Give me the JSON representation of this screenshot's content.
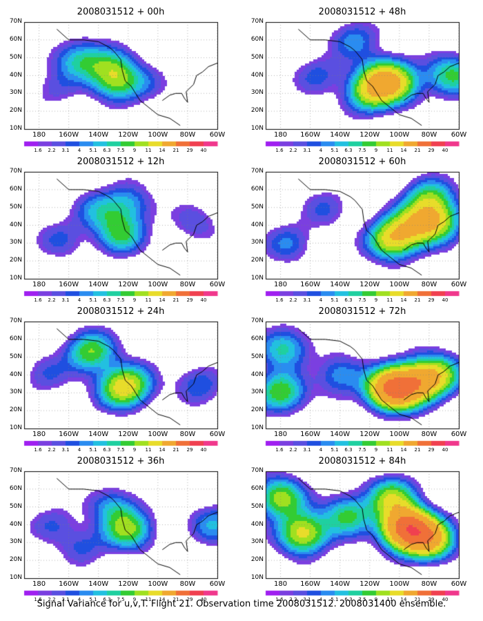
{
  "figure": {
    "caption": "Signal Variance for u,v,T. Flight 21. Observation time 2008031512. 2008031400 ensemble."
  },
  "axes": {
    "lon_labels": [
      "180",
      "160W",
      "140W",
      "120W",
      "100W",
      "80W",
      "60W"
    ],
    "lat_labels": [
      "10N",
      "20N",
      "30N",
      "40N",
      "50N",
      "60N",
      "70N"
    ],
    "lon_range_deg": [
      -190,
      -60
    ],
    "lat_range_deg": [
      10,
      70
    ],
    "grid": "dotted"
  },
  "colorbar": {
    "levels": [
      "1.6",
      "2.2",
      "3.1",
      "4",
      "5.1",
      "6.3",
      "7.5",
      "9",
      "11",
      "14",
      "21",
      "29",
      "40"
    ],
    "colors": [
      "#a020f0",
      "#7b3fe0",
      "#5a4fe0",
      "#1f4fe0",
      "#2a8cf0",
      "#22c0e0",
      "#1fd0a0",
      "#33cc33",
      "#a0e020",
      "#e8dc2a",
      "#f0a830",
      "#f07038",
      "#f04050",
      "#f0388c"
    ]
  },
  "panels": [
    {
      "title": "2008031512 + 00h",
      "lead_hours": 0,
      "colorbar_shown": true,
      "variance_blobs": [
        {
          "lon": -158,
          "lat": 50,
          "value": 2.5
        },
        {
          "lon": -150,
          "lat": 48,
          "value": 4.2
        },
        {
          "lon": -133,
          "lat": 45,
          "value": 4.8
        },
        {
          "lon": -127,
          "lat": 37,
          "value": 8
        },
        {
          "lon": -170,
          "lat": 32,
          "value": 2.3
        },
        {
          "lon": -108,
          "lat": 35,
          "value": 2.1
        }
      ]
    },
    {
      "title": "2008031512 + 48h",
      "lead_hours": 48,
      "colorbar_shown": true,
      "variance_blobs": [
        {
          "lon": -110,
          "lat": 38,
          "value": 11
        },
        {
          "lon": -120,
          "lat": 30,
          "value": 9
        },
        {
          "lon": -100,
          "lat": 35,
          "value": 6
        },
        {
          "lon": -65,
          "lat": 40,
          "value": 8
        },
        {
          "lon": -155,
          "lat": 40,
          "value": 3.5
        },
        {
          "lon": -130,
          "lat": 60,
          "value": 4.5
        }
      ]
    },
    {
      "title": "2008031512 + 12h",
      "lead_hours": 12,
      "colorbar_shown": true,
      "variance_blobs": [
        {
          "lon": -140,
          "lat": 48,
          "value": 4.5
        },
        {
          "lon": -125,
          "lat": 35,
          "value": 7.5
        },
        {
          "lon": -165,
          "lat": 32,
          "value": 3.2
        },
        {
          "lon": -75,
          "lat": 42,
          "value": 3
        },
        {
          "lon": -120,
          "lat": 52,
          "value": 5
        }
      ]
    },
    {
      "title": "2008031512 + 60h",
      "lead_hours": 60,
      "colorbar_shown": true,
      "variance_blobs": [
        {
          "lon": -105,
          "lat": 32,
          "value": 12
        },
        {
          "lon": -90,
          "lat": 40,
          "value": 9
        },
        {
          "lon": -75,
          "lat": 42,
          "value": 10
        },
        {
          "lon": -80,
          "lat": 55,
          "value": 8
        },
        {
          "lon": -175,
          "lat": 30,
          "value": 4
        },
        {
          "lon": -150,
          "lat": 50,
          "value": 3
        }
      ]
    },
    {
      "title": "2008031512 + 24h",
      "lead_hours": 24,
      "colorbar_shown": true,
      "variance_blobs": [
        {
          "lon": -145,
          "lat": 53,
          "value": 9
        },
        {
          "lon": -125,
          "lat": 32,
          "value": 8
        },
        {
          "lon": -118,
          "lat": 35,
          "value": 6
        },
        {
          "lon": -72,
          "lat": 35,
          "value": 4
        },
        {
          "lon": -175,
          "lat": 40,
          "value": 3
        }
      ]
    },
    {
      "title": "2008031512 + 72h",
      "lead_hours": 72,
      "colorbar_shown": true,
      "variance_blobs": [
        {
          "lon": -105,
          "lat": 32,
          "value": 21
        },
        {
          "lon": -90,
          "lat": 35,
          "value": 12
        },
        {
          "lon": -75,
          "lat": 40,
          "value": 11
        },
        {
          "lon": -180,
          "lat": 30,
          "value": 9
        },
        {
          "lon": -178,
          "lat": 55,
          "value": 7
        },
        {
          "lon": -140,
          "lat": 40,
          "value": 5
        }
      ]
    },
    {
      "title": "2008031512 + 36h",
      "lead_hours": 36,
      "colorbar_shown": true,
      "variance_blobs": [
        {
          "lon": -120,
          "lat": 37,
          "value": 9
        },
        {
          "lon": -130,
          "lat": 50,
          "value": 5
        },
        {
          "lon": -170,
          "lat": 40,
          "value": 3
        },
        {
          "lon": -62,
          "lat": 40,
          "value": 5
        },
        {
          "lon": -150,
          "lat": 28,
          "value": 3
        }
      ]
    },
    {
      "title": "2008031512 + 84h",
      "lead_hours": 84,
      "colorbar_shown": true,
      "variance_blobs": [
        {
          "lon": -95,
          "lat": 38,
          "value": 24
        },
        {
          "lon": -80,
          "lat": 32,
          "value": 15
        },
        {
          "lon": -165,
          "lat": 35,
          "value": 12
        },
        {
          "lon": -180,
          "lat": 55,
          "value": 10
        },
        {
          "lon": -135,
          "lat": 45,
          "value": 8
        },
        {
          "lon": -105,
          "lat": 55,
          "value": 10
        }
      ]
    }
  ]
}
